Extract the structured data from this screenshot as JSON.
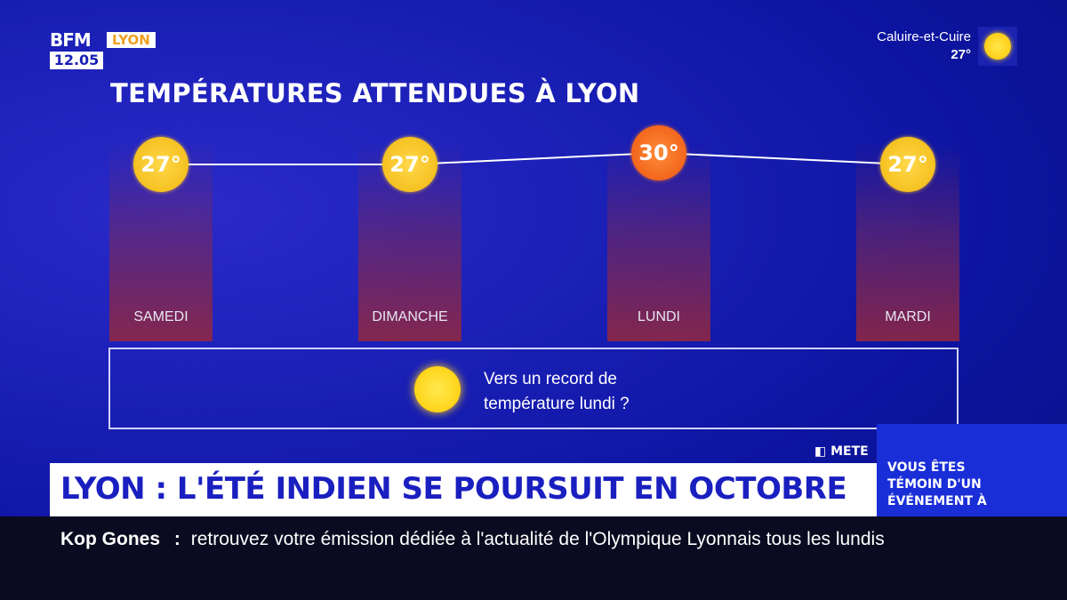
{
  "logo": {
    "brand": "BFM",
    "city": "LYON",
    "time": "12.05"
  },
  "weather_top": {
    "location": "Caluire-et-Cuire",
    "temp": "27°",
    "icon": "sun-icon"
  },
  "title": "TEMPÉRATURES ATTENDUES À LYON",
  "forecast": [
    {
      "day": "SAMEDI",
      "temp": "27°",
      "level": "warm"
    },
    {
      "day": "DIMANCHE",
      "temp": "27°",
      "level": "warm"
    },
    {
      "day": "LUNDI",
      "temp": "30°",
      "level": "hot"
    },
    {
      "day": "MARDI",
      "temp": "27°",
      "level": "warm"
    }
  ],
  "info": {
    "line1": "Vers un record de",
    "line2": "température lundi ?",
    "icon": "sun-icon"
  },
  "source_tag": "METE",
  "headline": "LYON : L'ÉTÉ INDIEN SE POURSUIT EN OCTOBRE",
  "promo": {
    "line1": "VOUS ÊTES",
    "line2": "TÉMOIN D'UN",
    "line3": "ÉVÉNEMENT À"
  },
  "ticker": {
    "show": "Kop Gones",
    "separator": ":",
    "text": "retrouvez votre émission dédiée à l'actualité de l'Olympique Lyonnais tous les lundis"
  },
  "colors": {
    "background": "#1a1fb5",
    "warm": "#f5c121",
    "hot": "#f2661c",
    "headline_text": "#1a1fc0"
  }
}
